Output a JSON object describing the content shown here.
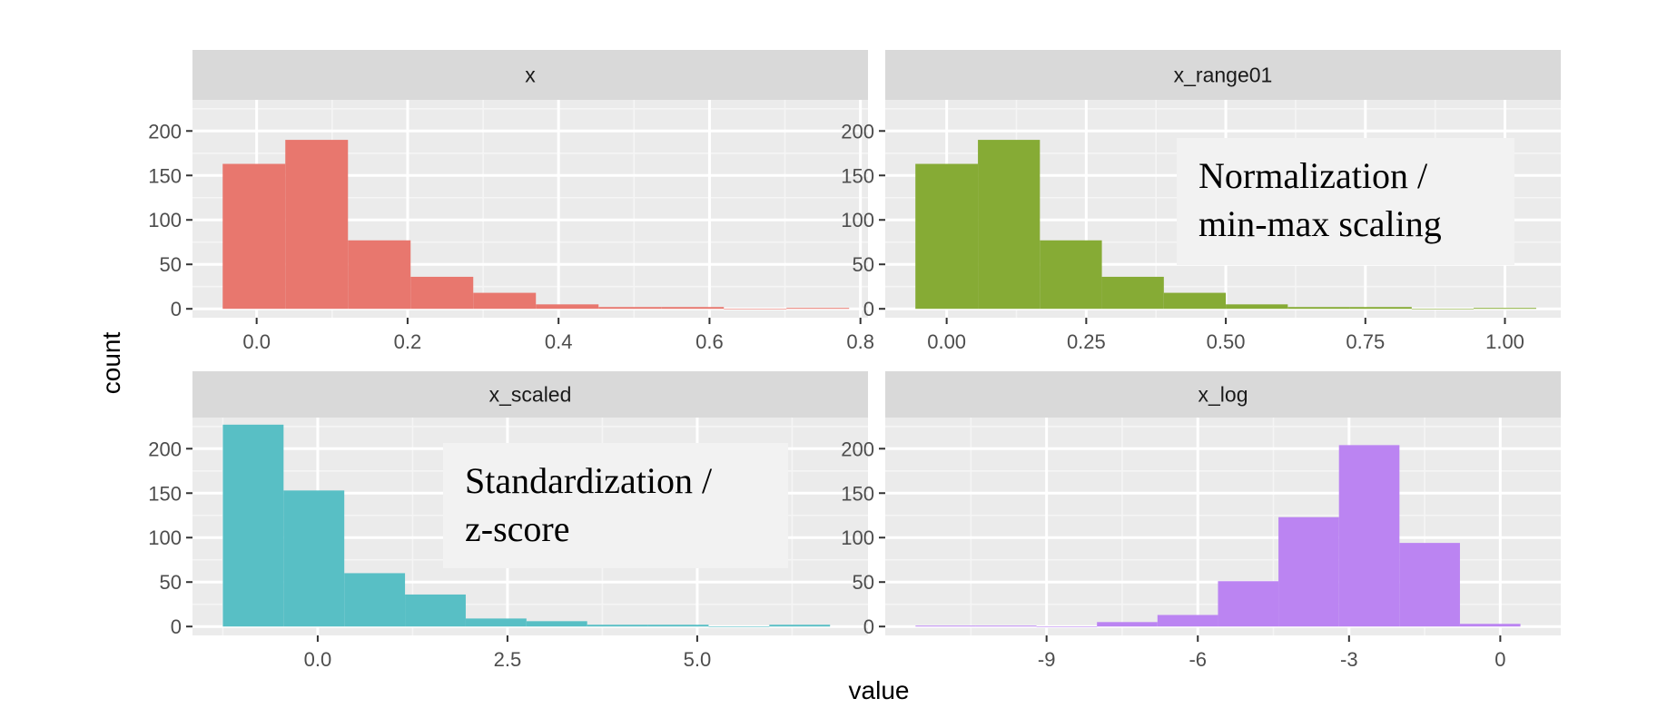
{
  "chart_data": {
    "type": "bar",
    "layout": "facet-grid 2x2",
    "xlabel": "value",
    "ylabel": "count",
    "facet_y_range": [
      -10,
      235
    ],
    "facet_y_ticks": [
      0,
      50,
      100,
      150,
      200
    ],
    "grid": true,
    "legend": "none",
    "facets": [
      {
        "name": "x",
        "color": "#E8776E",
        "x_range": [
          -0.085,
          0.81
        ],
        "x_ticks": [
          0.0,
          0.2,
          0.4,
          0.6,
          0.8
        ],
        "x_tick_labels": [
          "0.0",
          "0.2",
          "0.4",
          "0.6",
          "0.8"
        ],
        "bin_edges": [
          -0.045,
          0.038,
          0.121,
          0.204,
          0.287,
          0.37,
          0.453,
          0.536,
          0.619,
          0.702,
          0.785
        ],
        "counts": [
          163,
          190,
          77,
          36,
          18,
          5,
          2,
          2,
          0,
          1
        ],
        "annotation": {
          "lines": []
        }
      },
      {
        "name": "x_range01",
        "color": "#86AB35",
        "x_range": [
          -0.11,
          1.1
        ],
        "x_ticks": [
          0.0,
          0.25,
          0.5,
          0.75,
          1.0
        ],
        "x_tick_labels": [
          "0.00",
          "0.25",
          "0.50",
          "0.75",
          "1.00"
        ],
        "bin_edges": [
          -0.056,
          0.056,
          0.167,
          0.278,
          0.389,
          0.5,
          0.611,
          0.722,
          0.833,
          0.944,
          1.056
        ],
        "counts": [
          163,
          190,
          77,
          36,
          18,
          5,
          2,
          2,
          0,
          1
        ],
        "annotation": {
          "lines": [
            "Normalization /",
            "min-max scaling"
          ]
        }
      },
      {
        "name": "x_scaled",
        "color": "#58BFC5",
        "x_range": [
          -1.65,
          7.25
        ],
        "x_ticks": [
          0.0,
          2.5,
          5.0
        ],
        "x_tick_labels": [
          "0.0",
          "2.5",
          "5.0"
        ],
        "bin_edges": [
          -1.25,
          -0.45,
          0.35,
          1.15,
          1.95,
          2.75,
          3.55,
          4.35,
          5.15,
          5.95,
          6.75
        ],
        "counts": [
          227,
          153,
          60,
          36,
          9,
          6,
          2,
          2,
          0,
          2
        ],
        "annotation": {
          "lines": [
            "Standardization  /",
            "z-score"
          ]
        }
      },
      {
        "name": "x_log",
        "color": "#BB84F2",
        "x_range": [
          -12.2,
          1.2
        ],
        "x_ticks": [
          -9,
          -6,
          -3,
          0
        ],
        "x_tick_labels": [
          "-9",
          "-6",
          "-3",
          "0"
        ],
        "bin_edges": [
          -11.6,
          -10.4,
          -9.2,
          -8.0,
          -6.8,
          -5.6,
          -4.4,
          -3.2,
          -2.0,
          -0.8,
          0.4
        ],
        "counts": [
          1,
          1,
          0,
          5,
          13,
          51,
          123,
          204,
          94,
          3
        ],
        "annotation": {
          "lines": []
        }
      }
    ]
  }
}
